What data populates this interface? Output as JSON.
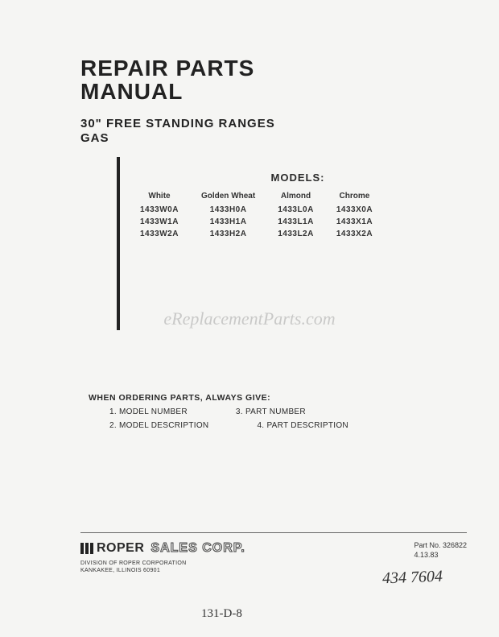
{
  "title_line1": "REPAIR PARTS",
  "title_line2": "MANUAL",
  "subtitle_line1": "30\" FREE STANDING RANGES",
  "subtitle_line2": "GAS",
  "models_heading": "MODELS:",
  "models_table": {
    "columns": [
      "White",
      "Golden Wheat",
      "Almond",
      "Chrome"
    ],
    "rows": [
      [
        "1433W0A",
        "1433H0A",
        "1433L0A",
        "1433X0A"
      ],
      [
        "1433W1A",
        "1433H1A",
        "1433L1A",
        "1433X1A"
      ],
      [
        "1433W2A",
        "1433H2A",
        "1433L2A",
        "1433X2A"
      ]
    ]
  },
  "watermark": "eReplacementParts.com",
  "ordering": {
    "heading": "WHEN ORDERING PARTS, ALWAYS GIVE:",
    "items": [
      "1.  MODEL NUMBER",
      "2.  MODEL DESCRIPTION",
      "3.  PART NUMBER",
      "4.  PART DESCRIPTION"
    ]
  },
  "footer": {
    "logo_text": "ROPER",
    "sales_text": "SALES CORP.",
    "division_line1": "DIVISION OF ROPER CORPORATION",
    "division_line2": "KANKAKEE, ILLINOIS 60901",
    "part_no": "Part No. 326822",
    "date": "4.13.83"
  },
  "handwritten1": "434 7604",
  "handwritten2": "131-D-8",
  "colors": {
    "bg": "#f5f5f3",
    "text": "#2a2a2a",
    "bar": "#222222"
  }
}
